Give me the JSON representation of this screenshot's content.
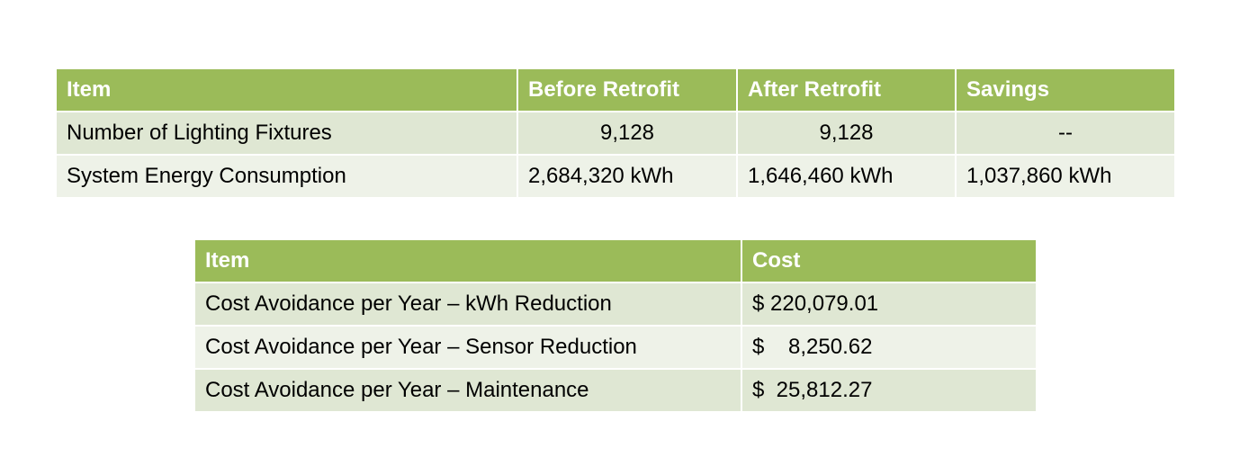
{
  "table1": {
    "header": [
      "Item",
      "Before Retrofit",
      "After Retrofit",
      "Savings"
    ],
    "rows": [
      [
        "Number of Lighting Fixtures",
        "9,128",
        "9,128",
        "--"
      ],
      [
        "System Energy Consumption",
        "2,684,320 kWh",
        "1,646,460 kWh",
        "1,037,860 kWh"
      ]
    ]
  },
  "table2": {
    "header": [
      "Item",
      "Cost"
    ],
    "rows": [
      [
        "Cost Avoidance per Year – kWh Reduction",
        "$ 220,079.01"
      ],
      [
        "Cost Avoidance per Year – Sensor Reduction",
        "$    8,250.62"
      ],
      [
        "Cost Avoidance per Year – Maintenance",
        "$  25,812.27"
      ]
    ]
  }
}
